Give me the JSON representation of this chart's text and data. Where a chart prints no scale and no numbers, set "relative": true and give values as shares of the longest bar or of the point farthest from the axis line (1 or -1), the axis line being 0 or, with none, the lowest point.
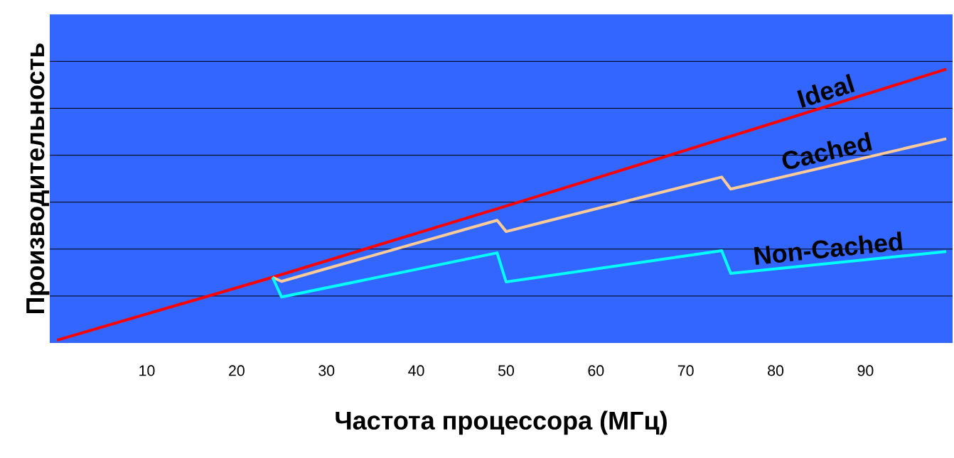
{
  "chart_data": {
    "type": "line",
    "xlabel": "Частота процессора (МГц)",
    "ylabel": "Производительность",
    "relative": true,
    "xlim": [
      -0.8,
      99.7
    ],
    "xticks": [
      10,
      20,
      30,
      40,
      50,
      60,
      70,
      80,
      90
    ],
    "grid": "y",
    "marker": "none",
    "line_style": "solid",
    "series": [
      {
        "name": "Ideal",
        "color": "#ff0000",
        "x": [
          0,
          24,
          50,
          99
        ],
        "values": [
          0.01,
          0.24,
          0.5,
          1.0
        ]
      },
      {
        "name": "Cached",
        "color": "#ffcc99",
        "x": [
          24,
          25,
          49,
          50,
          74,
          75,
          99
        ],
        "values": [
          0.24,
          0.225,
          0.448,
          0.407,
          0.606,
          0.562,
          0.746
        ]
      },
      {
        "name": "Non-Cached",
        "color": "#00ffff",
        "x": [
          24,
          25,
          49,
          50,
          74,
          75,
          99
        ],
        "values": [
          0.24,
          0.168,
          0.329,
          0.223,
          0.337,
          0.254,
          0.334
        ]
      }
    ]
  }
}
